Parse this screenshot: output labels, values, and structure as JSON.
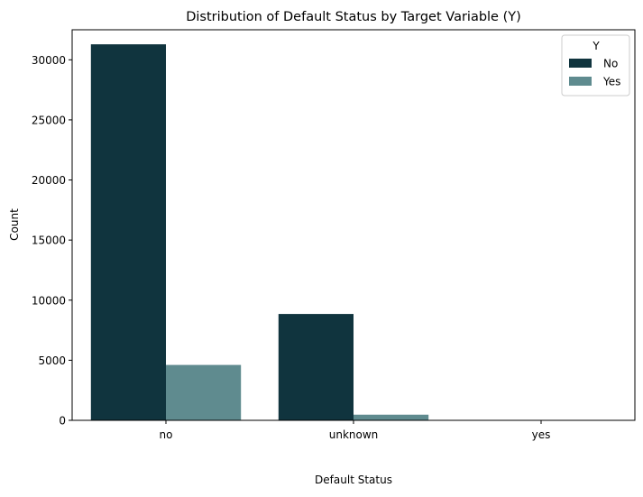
{
  "chart_data": {
    "type": "bar",
    "title": "Distribution of Default Status by Target Variable (Y)",
    "xlabel": "Default Status",
    "ylabel": "Count",
    "categories": [
      "no",
      "unknown",
      "yes"
    ],
    "series": [
      {
        "name": "No",
        "color": "#10343e",
        "values": [
          31290,
          8850,
          3
        ]
      },
      {
        "name": "Yes",
        "color": "#5f8b8f",
        "values": [
          4610,
          470,
          0
        ]
      }
    ],
    "ylim": [
      0,
      32500
    ],
    "yticks": [
      0,
      5000,
      10000,
      15000,
      20000,
      25000,
      30000
    ],
    "legend": {
      "title": "Y",
      "placement": "top-right"
    },
    "grid": false
  }
}
